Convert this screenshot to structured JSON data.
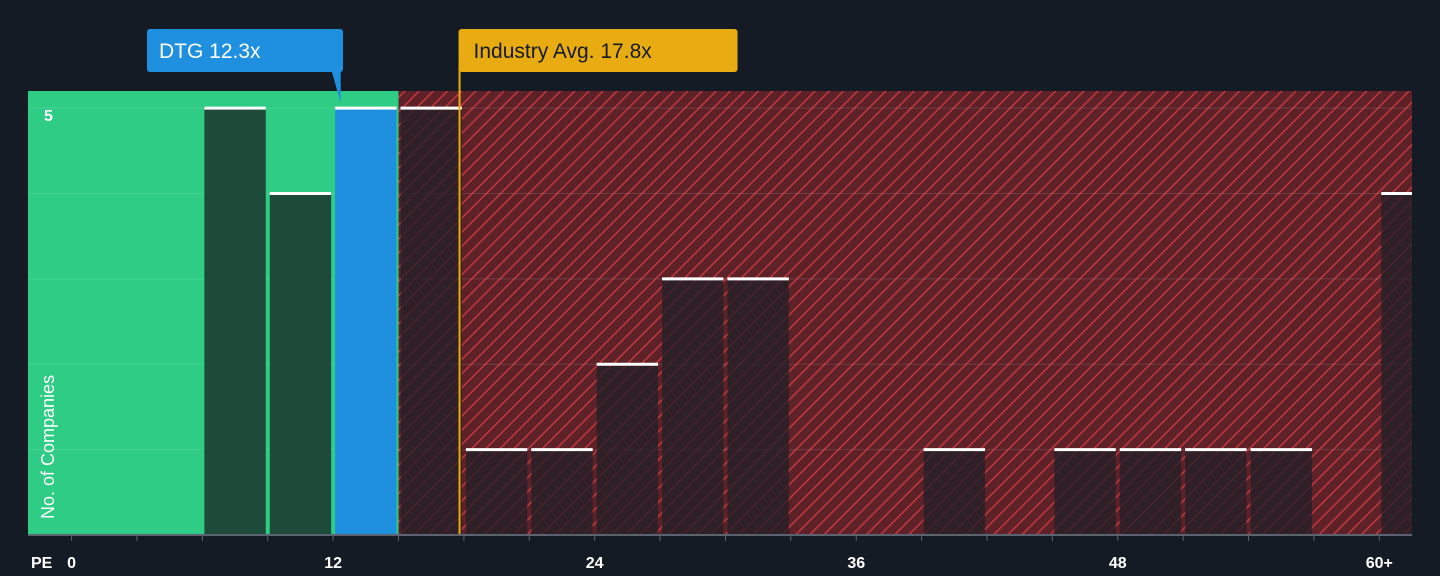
{
  "chart_data": {
    "type": "bar",
    "subject": {
      "label": "DTG 12.3x",
      "value": 12.3
    },
    "industry_avg": {
      "label": "Industry Avg. 17.8x",
      "value": 17.8
    },
    "xlabel": "PE",
    "ylabel": "No. of Companies",
    "x_ticks": [
      {
        "value": 0,
        "label": "0"
      },
      {
        "value": 12,
        "label": "12"
      },
      {
        "value": 24,
        "label": "24"
      },
      {
        "value": 36,
        "label": "36"
      },
      {
        "value": 48,
        "label": "48"
      },
      {
        "value": 60,
        "label": "60+"
      }
    ],
    "y_ticks": [
      {
        "value": 5,
        "label": "5"
      }
    ],
    "xlim": [
      -2,
      61.5
    ],
    "ylim": [
      0,
      5.2
    ],
    "bin_width": 3,
    "bars": [
      {
        "x": 7.5,
        "value": 5
      },
      {
        "x": 10.5,
        "value": 4
      },
      {
        "x": 13.5,
        "value": 5,
        "highlight": true
      },
      {
        "x": 16.5,
        "value": 5
      },
      {
        "x": 19.5,
        "value": 1
      },
      {
        "x": 22.5,
        "value": 1
      },
      {
        "x": 25.5,
        "value": 2
      },
      {
        "x": 28.5,
        "value": 3
      },
      {
        "x": 31.5,
        "value": 3
      },
      {
        "x": 40.5,
        "value": 1
      },
      {
        "x": 46.5,
        "value": 1
      },
      {
        "x": 49.5,
        "value": 1
      },
      {
        "x": 52.5,
        "value": 1
      },
      {
        "x": 55.5,
        "value": 1
      },
      {
        "x": 61.5,
        "value": 4
      }
    ],
    "colors": {
      "background": "#151b24",
      "good_zone": "#2ecc84",
      "bad_zone": "#7a2b33",
      "hatch": "#c0393f",
      "bar_in_good": "#1e4a3a",
      "bar_in_bad": "#231f28",
      "highlight": "#1f8fe0",
      "avg_line": "#e8ac12",
      "bar_cap": "#ffffff",
      "axis_text": "#ffffff"
    }
  }
}
